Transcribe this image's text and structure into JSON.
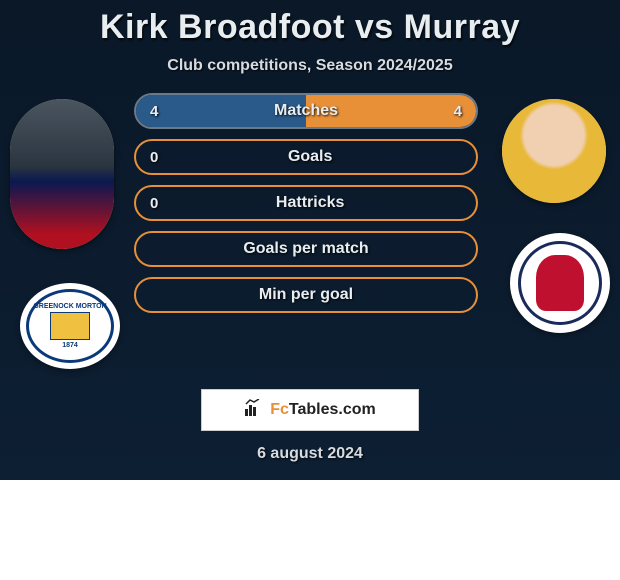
{
  "title": "Kirk Broadfoot vs Murray",
  "subtitle": "Club competitions, Season 2024/2025",
  "date": "6 august 2024",
  "footer_brand_prefix": "Fc",
  "footer_brand_suffix": "Tables.com",
  "colors": {
    "bg_dark": "#0a1828",
    "text_light": "#e8edf0",
    "border_dim": "#5a6a78",
    "fill_left": "#2a5a8a",
    "fill_right": "#e89038",
    "white": "#ffffff"
  },
  "stat_rows": [
    {
      "label": "Matches",
      "left_val": "4",
      "right_val": "4",
      "left_pct": 50,
      "right_pct": 50,
      "left_color": "#2a5a8a",
      "right_color": "#e89038",
      "border_color": "#6a7a88"
    },
    {
      "label": "Goals",
      "left_val": "0",
      "right_val": "",
      "left_pct": 0,
      "right_pct": 0,
      "left_color": "#2a5a8a",
      "right_color": "#e89038",
      "border_color": "#e89038"
    },
    {
      "label": "Hattricks",
      "left_val": "0",
      "right_val": "",
      "left_pct": 0,
      "right_pct": 0,
      "left_color": "#2a5a8a",
      "right_color": "#e89038",
      "border_color": "#e89038"
    },
    {
      "label": "Goals per match",
      "left_val": "",
      "right_val": "",
      "left_pct": 0,
      "right_pct": 0,
      "left_color": "#2a5a8a",
      "right_color": "#e89038",
      "border_color": "#e89038"
    },
    {
      "label": "Min per goal",
      "left_val": "",
      "right_val": "",
      "left_pct": 0,
      "right_pct": 0,
      "left_color": "#2a5a8a",
      "right_color": "#e89038",
      "border_color": "#e89038"
    }
  ],
  "player_left_name": "kirk-broadfoot",
  "player_right_name": "murray",
  "club_left_name": "greenock-morton",
  "club_left_year": "1874",
  "club_right_name": "raith-rovers"
}
